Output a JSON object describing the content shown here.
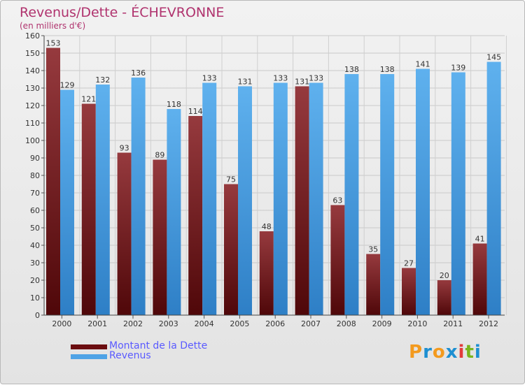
{
  "header": {
    "title": "Revenus/Dette - ÉCHEVRONNE",
    "subtitle": "(en milliers d'€)"
  },
  "chart_data": {
    "type": "bar",
    "title": "Revenus/Dette - ÉCHEVRONNE",
    "ylabel": "(en milliers d'€)",
    "xlabel": "",
    "ylim": [
      0,
      160
    ],
    "yticks": [
      0,
      10,
      20,
      30,
      40,
      50,
      60,
      70,
      80,
      90,
      100,
      110,
      120,
      130,
      140,
      150,
      160
    ],
    "grid": true,
    "legend_position": "bottom-left",
    "categories": [
      "2000",
      "2001",
      "2002",
      "2003",
      "2004",
      "2005",
      "2006",
      "2007",
      "2008",
      "2009",
      "2010",
      "2011",
      "2012"
    ],
    "series": [
      {
        "name": "Montant de la Dette",
        "color": "#7d1a1d",
        "values": [
          153,
          121,
          93,
          89,
          114,
          75,
          48,
          131,
          63,
          35,
          27,
          20,
          41
        ]
      },
      {
        "name": "Revenus",
        "color": "#4ea3e6",
        "values": [
          129,
          132,
          136,
          118,
          133,
          131,
          133,
          133,
          138,
          138,
          141,
          139,
          145
        ]
      }
    ]
  },
  "logo": {
    "text": "Proxiti",
    "letters": [
      {
        "ch": "P",
        "color": "#f39a1e"
      },
      {
        "ch": "r",
        "color": "#1d8fd1"
      },
      {
        "ch": "o",
        "color": "#f39a1e"
      },
      {
        "ch": "x",
        "color": "#1d8fd1"
      },
      {
        "ch": "i",
        "color": "#e23b3b"
      },
      {
        "ch": "t",
        "color": "#7ab51d"
      },
      {
        "ch": "i",
        "color": "#1d8fd1"
      }
    ]
  }
}
